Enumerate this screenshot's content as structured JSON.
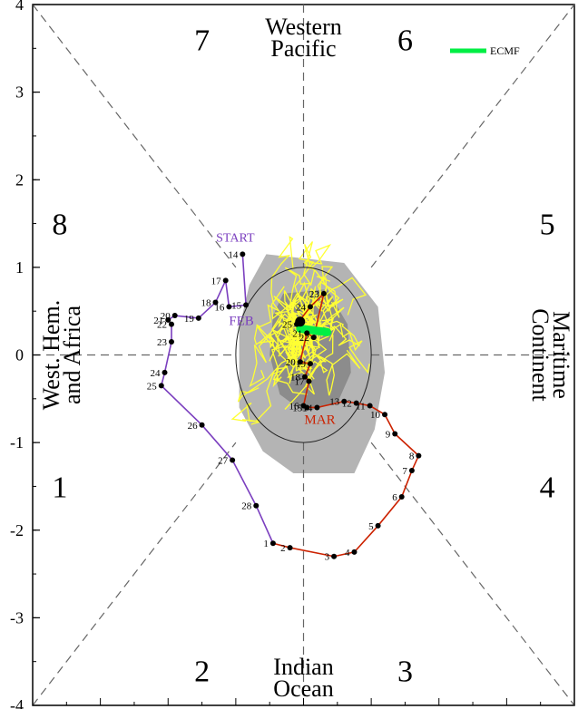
{
  "chart_data": {
    "type": "scatter",
    "title": "",
    "xlabel": "",
    "ylabel": "",
    "xlim": [
      -4,
      4
    ],
    "ylim": [
      -4,
      4
    ],
    "yticks": [
      4,
      3,
      2,
      1,
      0,
      -1,
      -2,
      -3,
      -4
    ],
    "ytick_labels": [
      "4",
      "3",
      "2",
      "1",
      "0",
      "-1",
      "-2",
      "-3",
      "-4"
    ],
    "phases": [
      {
        "label": "1",
        "x": -3.6,
        "y": -1.5
      },
      {
        "label": "2",
        "x": -1.5,
        "y": -3.6
      },
      {
        "label": "3",
        "x": 1.5,
        "y": -3.6
      },
      {
        "label": "4",
        "x": 3.6,
        "y": -1.5
      },
      {
        "label": "5",
        "x": 3.6,
        "y": 1.5
      },
      {
        "label": "6",
        "x": 1.5,
        "y": 3.6
      },
      {
        "label": "7",
        "x": -1.5,
        "y": 3.6
      },
      {
        "label": "8",
        "x": -3.6,
        "y": 1.5
      }
    ],
    "regions": {
      "top": [
        "Western",
        "Pacific"
      ],
      "bottom": [
        "Indian",
        "Ocean"
      ],
      "left": [
        "West. Hem.",
        "and Africa"
      ],
      "right": [
        "Maritime",
        "Continent"
      ]
    },
    "annotations": {
      "start": "START",
      "feb": "FEB",
      "mar": "MAR"
    },
    "colors": {
      "feb_series": "#7b3fbf",
      "mar_series": "#cc2200",
      "ensemble": "#ffff33",
      "ensemble_mean": "#00ee44",
      "spread": "#b4b4b4",
      "spread_inner": "#8c8c8c",
      "axes": "#000000"
    },
    "legend": {
      "label": "ECMF",
      "position": "top-right"
    },
    "series": [
      {
        "name": "FEB",
        "color": "#7b3fbf",
        "points": [
          {
            "day": "14",
            "x": -0.9,
            "y": 1.15
          },
          {
            "day": "15",
            "x": -0.85,
            "y": 0.57
          },
          {
            "day": "16",
            "x": -1.1,
            "y": 0.55
          },
          {
            "day": "17",
            "x": -1.15,
            "y": 0.85
          },
          {
            "day": "18",
            "x": -1.3,
            "y": 0.6
          },
          {
            "day": "19",
            "x": -1.55,
            "y": 0.42
          },
          {
            "day": "20",
            "x": -1.9,
            "y": 0.45
          },
          {
            "day": "21",
            "x": -2.0,
            "y": 0.4
          },
          {
            "day": "22",
            "x": -1.95,
            "y": 0.35
          },
          {
            "day": "23",
            "x": -1.95,
            "y": 0.15
          },
          {
            "day": "24",
            "x": -2.05,
            "y": -0.2
          },
          {
            "day": "25",
            "x": -2.1,
            "y": -0.35
          },
          {
            "day": "26",
            "x": -1.5,
            "y": -0.8
          },
          {
            "day": "27",
            "x": -1.05,
            "y": -1.2
          },
          {
            "day": "28",
            "x": -0.7,
            "y": -1.72
          }
        ]
      },
      {
        "name": "MAR",
        "color": "#cc2200",
        "points": [
          {
            "day": "1",
            "x": -0.45,
            "y": -2.15
          },
          {
            "day": "2",
            "x": -0.2,
            "y": -2.2
          },
          {
            "day": "3",
            "x": 0.45,
            "y": -2.3
          },
          {
            "day": "4",
            "x": 0.75,
            "y": -2.25
          },
          {
            "day": "5",
            "x": 1.1,
            "y": -1.95
          },
          {
            "day": "6",
            "x": 1.45,
            "y": -1.62
          },
          {
            "day": "7",
            "x": 1.6,
            "y": -1.32
          },
          {
            "day": "8",
            "x": 1.7,
            "y": -1.15
          },
          {
            "day": "9",
            "x": 1.35,
            "y": -0.9
          },
          {
            "day": "10",
            "x": 1.2,
            "y": -0.68
          },
          {
            "day": "11",
            "x": 0.98,
            "y": -0.58
          },
          {
            "day": "12",
            "x": 0.78,
            "y": -0.55
          },
          {
            "day": "13",
            "x": 0.6,
            "y": -0.53
          },
          {
            "day": "14",
            "x": 0.2,
            "y": -0.6
          },
          {
            "day": "15",
            "x": 0.05,
            "y": -0.6
          },
          {
            "day": "16",
            "x": 0.0,
            "y": -0.58
          },
          {
            "day": "17",
            "x": 0.08,
            "y": -0.3
          },
          {
            "day": "18",
            "x": 0.02,
            "y": -0.25
          },
          {
            "day": "19",
            "x": 0.1,
            "y": -0.1
          },
          {
            "day": "20",
            "x": -0.05,
            "y": -0.08
          },
          {
            "day": "21",
            "x": 0.05,
            "y": 0.25
          },
          {
            "day": "22",
            "x": 0.15,
            "y": 0.2
          },
          {
            "day": "23",
            "x": 0.3,
            "y": 0.7
          },
          {
            "day": "24",
            "x": 0.1,
            "y": 0.55
          },
          {
            "day": "25",
            "x": -0.1,
            "y": 0.35
          }
        ]
      }
    ],
    "ensemble_mean": [
      {
        "x": -0.05,
        "y": 0.3
      },
      {
        "x": 0.15,
        "y": 0.28
      },
      {
        "x": 0.35,
        "y": 0.26
      }
    ]
  }
}
